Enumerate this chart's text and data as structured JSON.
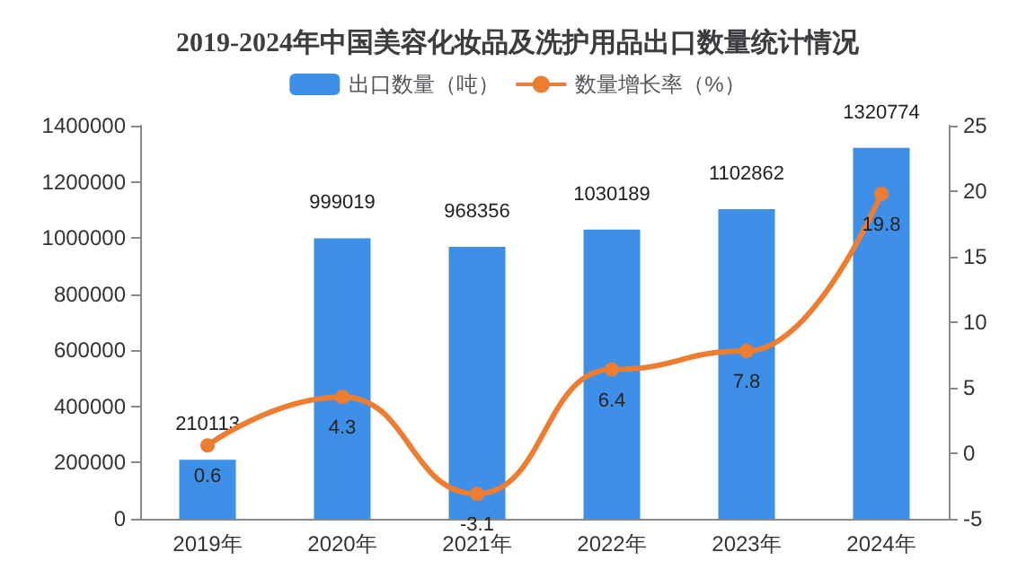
{
  "chart_data": {
    "type": "bar",
    "title": "2019-2024年中国美容化妆品及洗护用品出口数量统计情况",
    "categories": [
      "2019年",
      "2020年",
      "2021年",
      "2022年",
      "2023年",
      "2024年"
    ],
    "series": [
      {
        "name": "出口数量（吨）",
        "color": "#3d8fe8",
        "values": [
          210113,
          999019,
          968356,
          1030189,
          1102862,
          1320774
        ]
      },
      {
        "name": "数量增长率（%）",
        "type": "line",
        "axis": "y2",
        "color": "#ed7d31",
        "marker": "circle",
        "values": [
          0.6,
          4.3,
          -3.1,
          6.4,
          7.8,
          19.8
        ]
      }
    ],
    "ylim": [
      0,
      1400000
    ],
    "yticks": [
      0,
      200000,
      400000,
      600000,
      800000,
      1000000,
      1200000,
      1400000
    ],
    "y2lim": [
      -5,
      25
    ],
    "y2ticks": [
      -5,
      0,
      5,
      10,
      15,
      20,
      25
    ],
    "data_labels": true,
    "legend": "top",
    "grid": false
  }
}
